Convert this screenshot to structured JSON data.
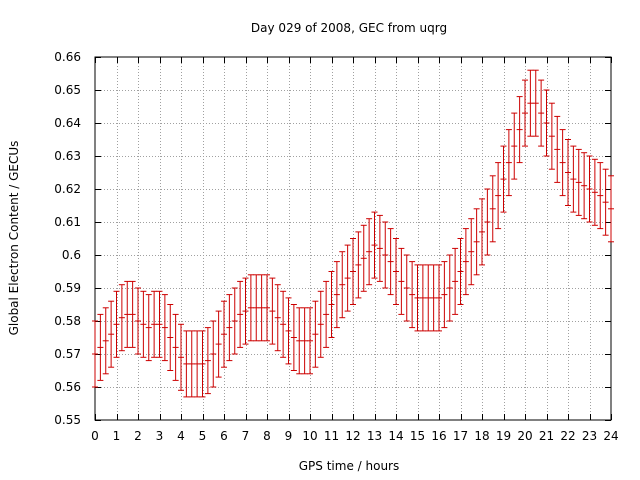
{
  "chart_data": {
    "type": "scatter",
    "title": "Day 029 of 2008, GEC from uqrg",
    "xlabel": "GPS time / hours",
    "ylabel": "Global Electron Content / GECUs",
    "xlim": [
      0,
      24
    ],
    "ylim": [
      0.55,
      0.66
    ],
    "xticks": [
      0,
      1,
      2,
      3,
      4,
      5,
      6,
      7,
      8,
      9,
      10,
      11,
      12,
      13,
      14,
      15,
      16,
      17,
      18,
      19,
      20,
      21,
      22,
      23,
      24
    ],
    "yticks": [
      0.55,
      0.56,
      0.57,
      0.58,
      0.59,
      0.6,
      0.61,
      0.62,
      0.63,
      0.64,
      0.65,
      0.66
    ],
    "ytick_labels": [
      "0.55",
      "0.56",
      "0.57",
      "0.58",
      "0.59",
      "0.6",
      "0.61",
      "0.62",
      "0.63",
      "0.64",
      "0.65",
      "0.66"
    ],
    "grid": true,
    "error_half_width": 0.01,
    "series": [
      {
        "color": "#cc0000",
        "x": [
          0.0,
          0.25,
          0.5,
          0.75,
          1.0,
          1.25,
          1.5,
          1.75,
          2.0,
          2.25,
          2.5,
          2.75,
          3.0,
          3.25,
          3.5,
          3.75,
          4.0,
          4.25,
          4.5,
          4.75,
          5.0,
          5.25,
          5.5,
          5.75,
          6.0,
          6.25,
          6.5,
          6.75,
          7.0,
          7.25,
          7.5,
          7.75,
          8.0,
          8.25,
          8.5,
          8.75,
          9.0,
          9.25,
          9.5,
          9.75,
          10.0,
          10.25,
          10.5,
          10.75,
          11.0,
          11.25,
          11.5,
          11.75,
          12.0,
          12.25,
          12.5,
          12.75,
          13.0,
          13.25,
          13.5,
          13.75,
          14.0,
          14.25,
          14.5,
          14.75,
          15.0,
          15.25,
          15.5,
          15.75,
          16.0,
          16.25,
          16.5,
          16.75,
          17.0,
          17.25,
          17.5,
          17.75,
          18.0,
          18.25,
          18.5,
          18.75,
          19.0,
          19.25,
          19.5,
          19.75,
          20.0,
          20.25,
          20.5,
          20.75,
          21.0,
          21.25,
          21.5,
          21.75,
          22.0,
          22.25,
          22.5,
          22.75,
          23.0,
          23.25,
          23.5,
          23.75,
          24.0
        ],
        "y": [
          0.57,
          0.572,
          0.574,
          0.576,
          0.579,
          0.581,
          0.582,
          0.582,
          0.58,
          0.579,
          0.578,
          0.579,
          0.579,
          0.578,
          0.575,
          0.572,
          0.569,
          0.567,
          0.567,
          0.567,
          0.567,
          0.568,
          0.57,
          0.573,
          0.576,
          0.578,
          0.58,
          0.582,
          0.583,
          0.584,
          0.584,
          0.584,
          0.584,
          0.583,
          0.581,
          0.579,
          0.577,
          0.575,
          0.574,
          0.574,
          0.574,
          0.576,
          0.579,
          0.582,
          0.585,
          0.588,
          0.591,
          0.593,
          0.595,
          0.597,
          0.599,
          0.601,
          0.603,
          0.602,
          0.6,
          0.598,
          0.595,
          0.592,
          0.59,
          0.588,
          0.587,
          0.587,
          0.587,
          0.587,
          0.587,
          0.588,
          0.59,
          0.592,
          0.595,
          0.598,
          0.601,
          0.604,
          0.607,
          0.61,
          0.614,
          0.618,
          0.623,
          0.628,
          0.633,
          0.638,
          0.643,
          0.646,
          0.646,
          0.643,
          0.64,
          0.636,
          0.632,
          0.628,
          0.625,
          0.623,
          0.622,
          0.621,
          0.62,
          0.619,
          0.618,
          0.616,
          0.614
        ]
      }
    ]
  }
}
